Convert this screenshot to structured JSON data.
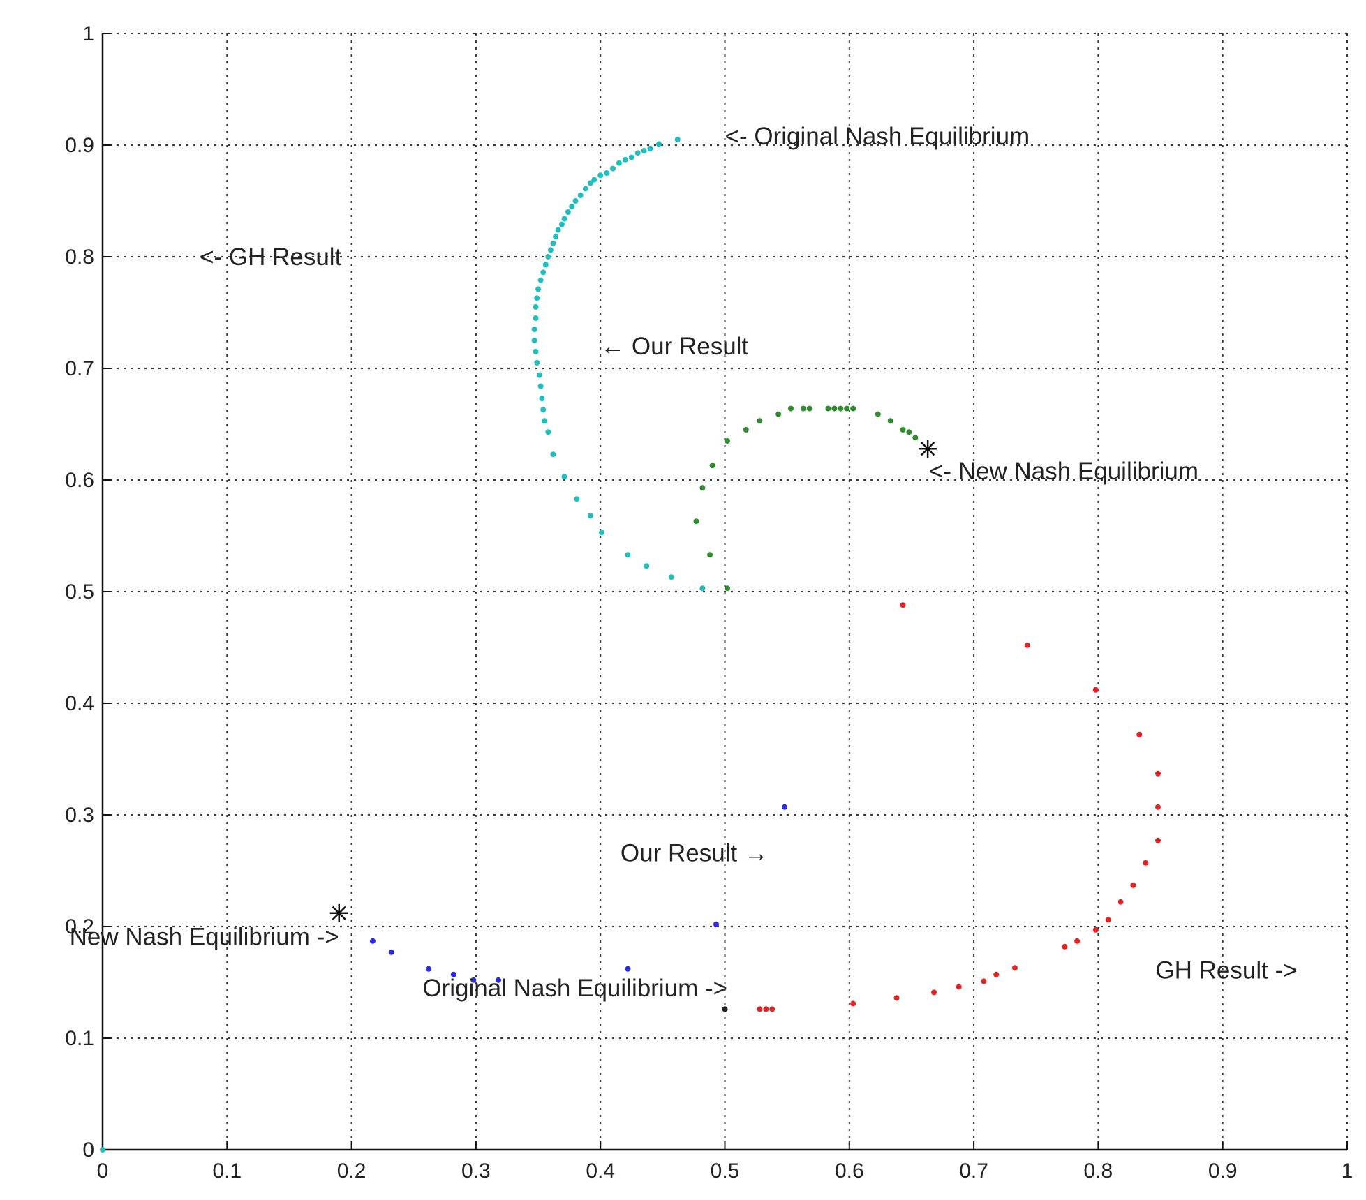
{
  "chart_data": {
    "type": "scatter",
    "title": "",
    "xlabel": "",
    "ylabel": "",
    "xlim": [
      0,
      1
    ],
    "ylim": [
      0,
      1
    ],
    "grid": true,
    "xticks": [
      0,
      0.1,
      0.2,
      0.3,
      0.4,
      0.5,
      0.6,
      0.7,
      0.8,
      0.9,
      1
    ],
    "yticks": [
      0,
      0.1,
      0.2,
      0.3,
      0.4,
      0.5,
      0.6,
      0.7,
      0.8,
      0.9,
      1
    ],
    "xtick_labels": [
      "0",
      "0.1",
      "0.2",
      "0.3",
      "0.4",
      "0.5",
      "0.6",
      "0.7",
      "0.8",
      "0.9",
      "1"
    ],
    "ytick_labels": [
      "0",
      "0.1",
      "0.2",
      "0.3",
      "0.4",
      "0.5",
      "0.6",
      "0.7",
      "0.8",
      "0.9",
      "1"
    ],
    "series": [
      {
        "color": "#1fbfbf",
        "points": [
          [
            0.462,
            0.905
          ],
          [
            0.447,
            0.901
          ],
          [
            0.44,
            0.897
          ],
          [
            0.435,
            0.895
          ],
          [
            0.43,
            0.893
          ],
          [
            0.425,
            0.889
          ],
          [
            0.42,
            0.887
          ],
          [
            0.415,
            0.884
          ],
          [
            0.41,
            0.879
          ],
          [
            0.405,
            0.875
          ],
          [
            0.4,
            0.873
          ],
          [
            0.395,
            0.869
          ],
          [
            0.392,
            0.866
          ],
          [
            0.388,
            0.861
          ],
          [
            0.384,
            0.855
          ],
          [
            0.38,
            0.85
          ],
          [
            0.377,
            0.845
          ],
          [
            0.374,
            0.84
          ],
          [
            0.371,
            0.834
          ],
          [
            0.369,
            0.829
          ],
          [
            0.366,
            0.824
          ],
          [
            0.364,
            0.818
          ],
          [
            0.362,
            0.812
          ],
          [
            0.36,
            0.806
          ],
          [
            0.358,
            0.8
          ],
          [
            0.356,
            0.793
          ],
          [
            0.354,
            0.786
          ],
          [
            0.352,
            0.779
          ],
          [
            0.35,
            0.771
          ],
          [
            0.349,
            0.763
          ],
          [
            0.348,
            0.755
          ],
          [
            0.348,
            0.745
          ],
          [
            0.347,
            0.735
          ],
          [
            0.347,
            0.725
          ],
          [
            0.348,
            0.715
          ],
          [
            0.349,
            0.705
          ],
          [
            0.351,
            0.694
          ],
          [
            0.352,
            0.684
          ],
          [
            0.353,
            0.673
          ],
          [
            0.354,
            0.663
          ],
          [
            0.355,
            0.653
          ],
          [
            0.358,
            0.643
          ],
          [
            0.362,
            0.623
          ],
          [
            0.371,
            0.603
          ],
          [
            0.381,
            0.583
          ],
          [
            0.392,
            0.568
          ],
          [
            0.401,
            0.553
          ],
          [
            0.422,
            0.533
          ],
          [
            0.437,
            0.523
          ],
          [
            0.457,
            0.513
          ],
          [
            0.482,
            0.503
          ]
        ]
      },
      {
        "color": "#2e8b2e",
        "points": [
          [
            0.502,
            0.503
          ],
          [
            0.488,
            0.533
          ],
          [
            0.477,
            0.563
          ],
          [
            0.482,
            0.593
          ],
          [
            0.49,
            0.613
          ],
          [
            0.502,
            0.635
          ],
          [
            0.517,
            0.645
          ],
          [
            0.528,
            0.653
          ],
          [
            0.543,
            0.659
          ],
          [
            0.553,
            0.664
          ],
          [
            0.563,
            0.664
          ],
          [
            0.568,
            0.664
          ],
          [
            0.583,
            0.664
          ],
          [
            0.588,
            0.664
          ],
          [
            0.593,
            0.664
          ],
          [
            0.598,
            0.664
          ],
          [
            0.603,
            0.664
          ],
          [
            0.623,
            0.659
          ],
          [
            0.633,
            0.653
          ],
          [
            0.643,
            0.645
          ],
          [
            0.648,
            0.643
          ],
          [
            0.653,
            0.638
          ]
        ]
      },
      {
        "color": "#e82020",
        "points": [
          [
            0.643,
            0.488
          ],
          [
            0.743,
            0.452
          ],
          [
            0.798,
            0.412
          ],
          [
            0.833,
            0.372
          ],
          [
            0.848,
            0.337
          ],
          [
            0.848,
            0.307
          ],
          [
            0.848,
            0.277
          ],
          [
            0.838,
            0.257
          ],
          [
            0.828,
            0.237
          ],
          [
            0.818,
            0.222
          ],
          [
            0.808,
            0.206
          ],
          [
            0.798,
            0.197
          ],
          [
            0.783,
            0.187
          ],
          [
            0.773,
            0.182
          ],
          [
            0.733,
            0.163
          ],
          [
            0.718,
            0.157
          ],
          [
            0.708,
            0.151
          ],
          [
            0.688,
            0.146
          ],
          [
            0.668,
            0.141
          ],
          [
            0.638,
            0.136
          ],
          [
            0.603,
            0.131
          ],
          [
            0.538,
            0.126
          ],
          [
            0.533,
            0.126
          ],
          [
            0.528,
            0.126
          ]
        ]
      },
      {
        "color": "#2a2aee",
        "points": [
          [
            0.548,
            0.307
          ],
          [
            0.493,
            0.202
          ],
          [
            0.422,
            0.162
          ],
          [
            0.318,
            0.152
          ],
          [
            0.298,
            0.152
          ],
          [
            0.282,
            0.157
          ],
          [
            0.262,
            0.162
          ],
          [
            0.232,
            0.177
          ],
          [
            0.217,
            0.187
          ]
        ]
      },
      {
        "color": "#222222",
        "points": [
          [
            0.5,
            0.126
          ]
        ]
      },
      {
        "color": "#1fbfbf",
        "points": [
          [
            0,
            0
          ]
        ]
      }
    ],
    "star_markers": [
      [
        0.663,
        0.628
      ],
      [
        0.19,
        0.212
      ]
    ],
    "annotations": [
      {
        "text": "<- Original Nash Equilibrium",
        "x": 0.5,
        "y": 0.908
      },
      {
        "text": "<- GH Result",
        "x": 0.078,
        "y": 0.8
      },
      {
        "text": "← Our Result",
        "x": 0.4,
        "y": 0.72
      },
      {
        "text": "<- New Nash Equilibrium",
        "x": 0.664,
        "y": 0.608
      },
      {
        "text": "Our Result →",
        "x": 0.535,
        "y": 0.266
      },
      {
        "text": "New Nash Equilibrium ->",
        "x": 0.19,
        "y": 0.191
      },
      {
        "text": "Original Nash Equilibrium ->",
        "x": 0.502,
        "y": 0.145
      },
      {
        "text": "GH Result ->",
        "x": 0.96,
        "y": 0.161
      }
    ]
  }
}
